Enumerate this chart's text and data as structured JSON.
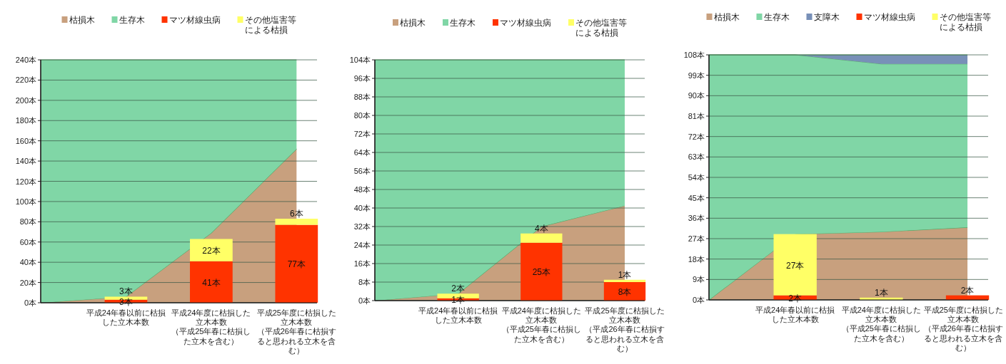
{
  "chart_data": [
    {
      "type": "area",
      "stacked": true,
      "categories": [
        null,
        null,
        null,
        null
      ],
      "ylim": [
        0,
        240
      ],
      "tick_labels": "y",
      "yticks": [
        {
          "value": 0,
          "label": "0本"
        },
        {
          "value": 20,
          "label": "20本"
        },
        {
          "value": 40,
          "label": "40本"
        },
        {
          "value": 60,
          "label": "60本"
        },
        {
          "value": 80,
          "label": "80本"
        },
        {
          "value": 100,
          "label": "100本"
        },
        {
          "value": 120,
          "label": "120本"
        },
        {
          "value": 140,
          "label": "140本"
        },
        {
          "value": 160,
          "label": "160本"
        },
        {
          "value": 180,
          "label": "180本"
        },
        {
          "value": 200,
          "label": "200本"
        },
        {
          "value": 220,
          "label": "220本"
        },
        {
          "value": 240,
          "label": "240本"
        }
      ],
      "grid": "y",
      "legend": "top",
      "series": [
        {
          "name": "枯損木",
          "color": "#c8a07e",
          "values": [
            0,
            6,
            69,
            152
          ]
        },
        {
          "name": "生存木",
          "color": "#80d6a6",
          "values": [
            240,
            234,
            171,
            88
          ]
        }
      ]
    },
    {
      "type": "bar",
      "stacked": true,
      "categories": [
        "平成24年春以前に枯損した立木本数",
        "平成24年度に枯損した立木本数（平成25年春に枯損した立木を含む）",
        "平成25年度に枯損した立木本数（平成26年春に枯損すると思われる立木を含む）"
      ],
      "ylim": [
        0,
        240
      ],
      "tick_labels": "x",
      "legend": "top",
      "series": [
        {
          "name": "マツ材線虫病",
          "color": "#ff3300",
          "values": [
            3,
            41,
            77
          ],
          "value_labels": [
            "3本",
            "41本",
            "77本"
          ]
        },
        {
          "name": "その他塩害等による枯損",
          "color": "#ffff66",
          "values": [
            3,
            22,
            6
          ],
          "value_labels": [
            "3本",
            "22本",
            "6本"
          ]
        }
      ]
    },
    {
      "type": "area",
      "stacked": true,
      "categories": [
        null,
        null,
        null,
        null
      ],
      "ylim": [
        0,
        104
      ],
      "tick_labels": "y",
      "yticks": [
        {
          "value": 0,
          "label": "0本"
        },
        {
          "value": 8,
          "label": "8本"
        },
        {
          "value": 16,
          "label": "16本"
        },
        {
          "value": 24,
          "label": "24本"
        },
        {
          "value": 32,
          "label": "32本"
        },
        {
          "value": 40,
          "label": "40本"
        },
        {
          "value": 48,
          "label": "48本"
        },
        {
          "value": 56,
          "label": "56本"
        },
        {
          "value": 64,
          "label": "64本"
        },
        {
          "value": 72,
          "label": "72本"
        },
        {
          "value": 80,
          "label": "80本"
        },
        {
          "value": 88,
          "label": "88本"
        },
        {
          "value": 96,
          "label": "96本"
        },
        {
          "value": 104,
          "label": "104本"
        }
      ],
      "grid": "y",
      "legend": "top",
      "series": [
        {
          "name": "枯損木",
          "color": "#c8a07e",
          "values": [
            0,
            3,
            32,
            41
          ]
        },
        {
          "name": "生存木",
          "color": "#80d6a6",
          "values": [
            104,
            101,
            72,
            63
          ]
        }
      ]
    },
    {
      "type": "bar",
      "stacked": true,
      "categories": [
        "平成24年春以前に枯損した立木本数",
        "平成24年度に枯損した立木本数（平成25年春に枯損した立木を含む）",
        "平成25年度に枯損した立木本数（平成26年春に枯損すると思われる立木を含む）"
      ],
      "ylim": [
        0,
        104
      ],
      "tick_labels": "x",
      "legend": "top",
      "series": [
        {
          "name": "マツ材線虫病",
          "color": "#ff3300",
          "values": [
            1,
            25,
            8
          ],
          "value_labels": [
            "1本",
            "25本",
            "8本"
          ]
        },
        {
          "name": "その他塩害等による枯損",
          "color": "#ffff66",
          "values": [
            2,
            4,
            1
          ],
          "value_labels": [
            "2本",
            "4本",
            "1本"
          ]
        }
      ]
    },
    {
      "type": "area",
      "stacked": true,
      "categories": [
        null,
        null,
        null,
        null
      ],
      "ylim": [
        0,
        108
      ],
      "tick_labels": "y",
      "yticks": [
        {
          "value": 0,
          "label": "0本"
        },
        {
          "value": 9,
          "label": "9本"
        },
        {
          "value": 18,
          "label": "18本"
        },
        {
          "value": 27,
          "label": "27本"
        },
        {
          "value": 36,
          "label": "36本"
        },
        {
          "value": 45,
          "label": "45本"
        },
        {
          "value": 54,
          "label": "54本"
        },
        {
          "value": 63,
          "label": "63本"
        },
        {
          "value": 72,
          "label": "72本"
        },
        {
          "value": 81,
          "label": "81本"
        },
        {
          "value": 90,
          "label": "90本"
        },
        {
          "value": 99,
          "label": "99本"
        },
        {
          "value": 108,
          "label": "108本"
        }
      ],
      "grid": "y",
      "legend": "top",
      "series": [
        {
          "name": "枯損木",
          "color": "#c8a07e",
          "values": [
            0,
            29,
            30,
            32
          ]
        },
        {
          "name": "生存木",
          "color": "#80d6a6",
          "values": [
            108,
            79,
            74,
            72
          ]
        },
        {
          "name": "支障木",
          "color": "#7890b8",
          "values": [
            0,
            0,
            4,
            4
          ]
        }
      ]
    },
    {
      "type": "bar",
      "stacked": true,
      "categories": [
        "平成24年春以前に枯損した立木本数",
        "平成24年度に枯損した立木本数（平成25年春に枯損した立木を含む）",
        "平成25年度に枯損した立木本数（平成26年春に枯損すると思われる立木を含む）"
      ],
      "ylim": [
        0,
        108
      ],
      "tick_labels": "x",
      "legend": "top",
      "series": [
        {
          "name": "マツ材線虫病",
          "color": "#ff3300",
          "values": [
            2,
            0,
            2
          ],
          "value_labels": [
            "2本",
            null,
            "2本"
          ]
        },
        {
          "name": "その他塩害等による枯損",
          "color": "#ffff66",
          "values": [
            27,
            1,
            0
          ],
          "value_labels": [
            "27本",
            "1本",
            null
          ]
        }
      ]
    }
  ]
}
